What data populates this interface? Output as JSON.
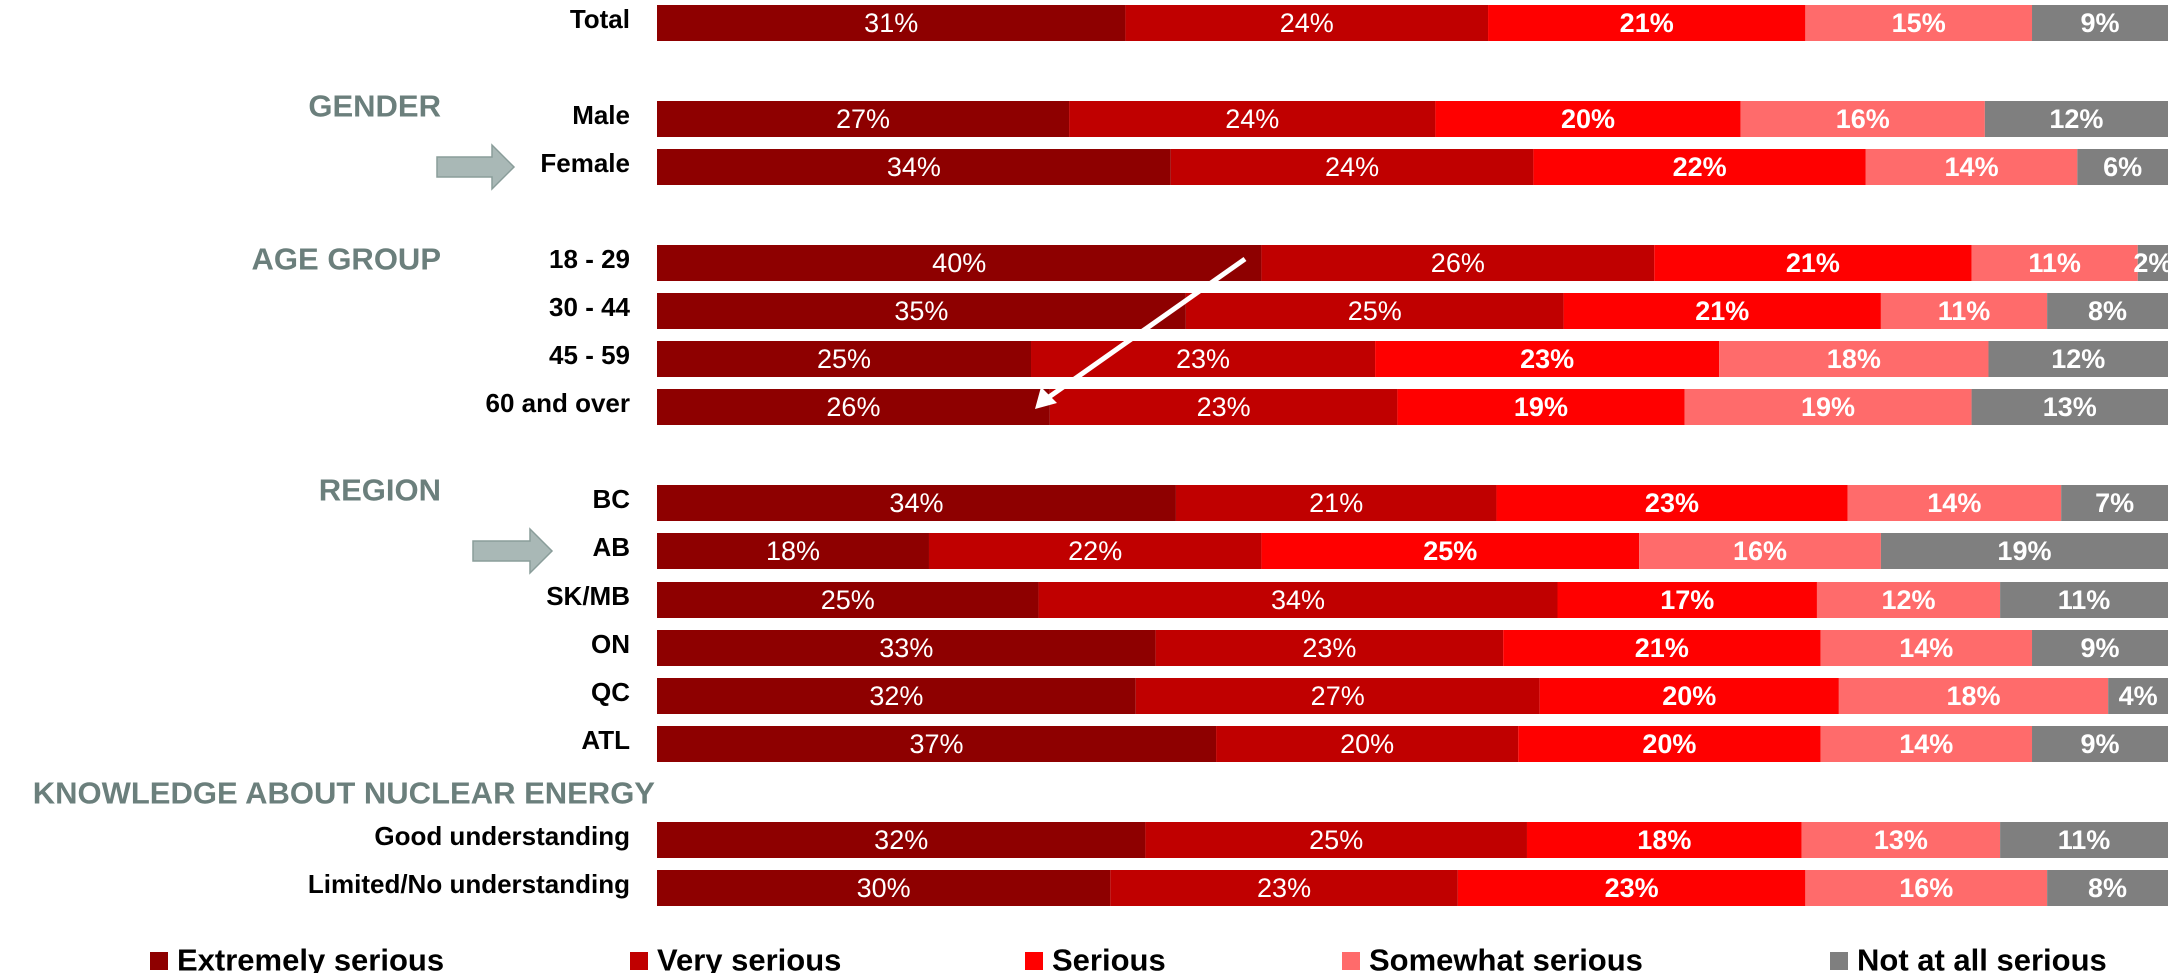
{
  "chart_data": {
    "type": "bar",
    "orientation": "horizontal",
    "stacked": true,
    "xlim": [
      0,
      100
    ],
    "legend": "bottom",
    "grid": false,
    "colors": [
      "#8e0000",
      "#c00000",
      "#ff0000",
      "#ff6b6b",
      "#7f7f7f"
    ],
    "series": [
      {
        "name": "Extremely serious"
      },
      {
        "name": "Very serious"
      },
      {
        "name": "Serious"
      },
      {
        "name": "Somewhat serious"
      },
      {
        "name": "Not at all serious"
      }
    ],
    "groups": [
      {
        "label": "",
        "rows": [
          {
            "label": "Total",
            "values": [
              31,
              24,
              21,
              15,
              9
            ]
          }
        ]
      },
      {
        "label": "GENDER",
        "rows": [
          {
            "label": "Male",
            "values": [
              27,
              24,
              20,
              16,
              12
            ]
          },
          {
            "label": "Female",
            "values": [
              34,
              24,
              22,
              14,
              6
            ]
          }
        ]
      },
      {
        "label": "AGE GROUP",
        "rows": [
          {
            "label": "18 - 29",
            "values": [
              40,
              26,
              21,
              11,
              2
            ]
          },
          {
            "label": "30 - 44",
            "values": [
              35,
              25,
              21,
              11,
              8
            ]
          },
          {
            "label": "45 - 59",
            "values": [
              25,
              23,
              23,
              18,
              12
            ]
          },
          {
            "label": "60 and over",
            "values": [
              26,
              23,
              19,
              19,
              13
            ]
          }
        ]
      },
      {
        "label": "REGION",
        "rows": [
          {
            "label": "BC",
            "values": [
              34,
              21,
              23,
              14,
              7
            ]
          },
          {
            "label": "AB",
            "values": [
              18,
              22,
              25,
              16,
              19
            ]
          },
          {
            "label": "SK/MB",
            "values": [
              25,
              34,
              17,
              12,
              11
            ]
          },
          {
            "label": "ON",
            "values": [
              33,
              23,
              21,
              14,
              9
            ]
          },
          {
            "label": "QC",
            "values": [
              32,
              27,
              20,
              18,
              4
            ]
          },
          {
            "label": "ATL",
            "values": [
              37,
              20,
              20,
              14,
              9
            ]
          }
        ]
      },
      {
        "label": "KNOWLEDGE ABOUT NUCLEAR ENERGY",
        "rows": [
          {
            "label": "Good understanding",
            "values": [
              32,
              25,
              18,
              13,
              11
            ]
          },
          {
            "label": "Limited/No understanding",
            "values": [
              30,
              23,
              23,
              16,
              8
            ]
          }
        ]
      }
    ],
    "annotations": [
      {
        "type": "arrow-marker",
        "row": "Female"
      },
      {
        "type": "arrow-marker",
        "row": "AB"
      },
      {
        "type": "trend-arrow",
        "from_row": "18 - 29",
        "to_row": "60 and over"
      }
    ]
  }
}
